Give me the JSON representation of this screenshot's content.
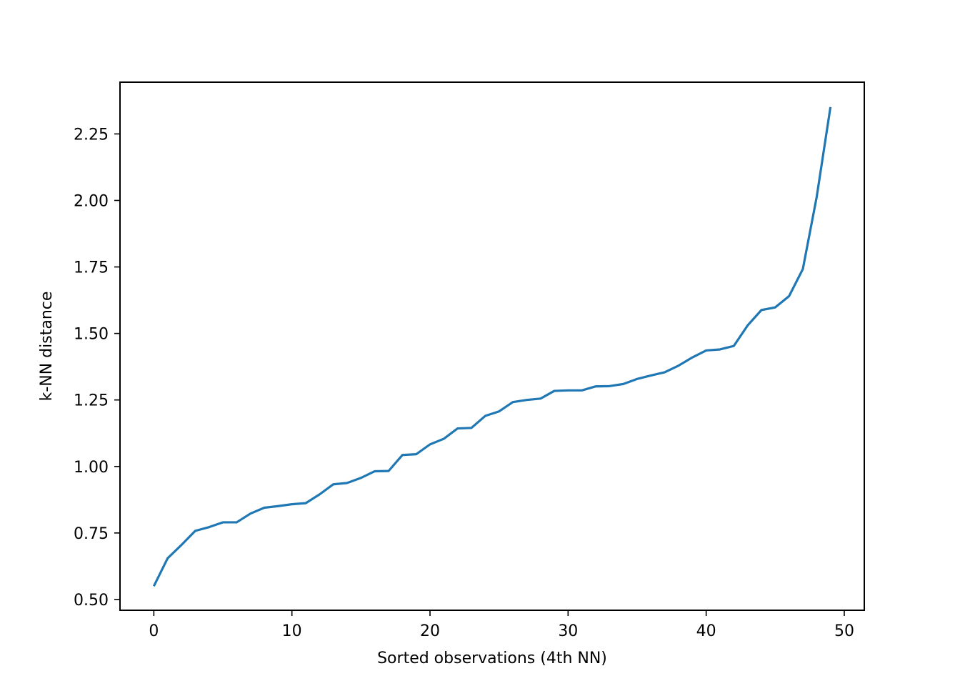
{
  "chart_data": {
    "type": "line",
    "title": "",
    "xlabel": "Sorted observations (4th NN)",
    "ylabel": "k-NN distance",
    "xlim": [
      -2.45,
      51.45
    ],
    "ylim": [
      0.4595,
      2.4445
    ],
    "xticks": [
      0,
      10,
      20,
      30,
      40,
      50
    ],
    "xtick_labels": [
      "0",
      "10",
      "20",
      "30",
      "40",
      "50"
    ],
    "yticks": [
      0.5,
      0.75,
      1.0,
      1.25,
      1.5,
      1.75,
      2.0,
      2.25
    ],
    "ytick_labels": [
      "0.50",
      "0.75",
      "1.00",
      "1.25",
      "1.50",
      "1.75",
      "2.00",
      "2.25"
    ],
    "grid": false,
    "series": [
      {
        "color": "#1f77b4",
        "x": [
          0,
          1,
          2,
          3,
          4,
          5,
          6,
          7,
          8,
          9,
          10,
          11,
          12,
          13,
          14,
          15,
          16,
          17,
          18,
          19,
          20,
          21,
          22,
          23,
          24,
          25,
          26,
          27,
          28,
          29,
          30,
          31,
          32,
          33,
          34,
          35,
          36,
          37,
          38,
          39,
          40,
          41,
          42,
          43,
          44,
          45,
          46,
          47,
          48,
          49
        ],
        "values": [
          0.55,
          0.655,
          0.705,
          0.758,
          0.772,
          0.79,
          0.79,
          0.823,
          0.845,
          0.851,
          0.858,
          0.862,
          0.895,
          0.933,
          0.938,
          0.957,
          0.982,
          0.983,
          1.043,
          1.046,
          1.083,
          1.104,
          1.143,
          1.145,
          1.19,
          1.207,
          1.242,
          1.25,
          1.255,
          1.284,
          1.286,
          1.286,
          1.301,
          1.302,
          1.31,
          1.329,
          1.342,
          1.354,
          1.379,
          1.41,
          1.436,
          1.44,
          1.453,
          1.53,
          1.588,
          1.598,
          1.64,
          1.742,
          2.012,
          2.351
        ]
      }
    ]
  }
}
